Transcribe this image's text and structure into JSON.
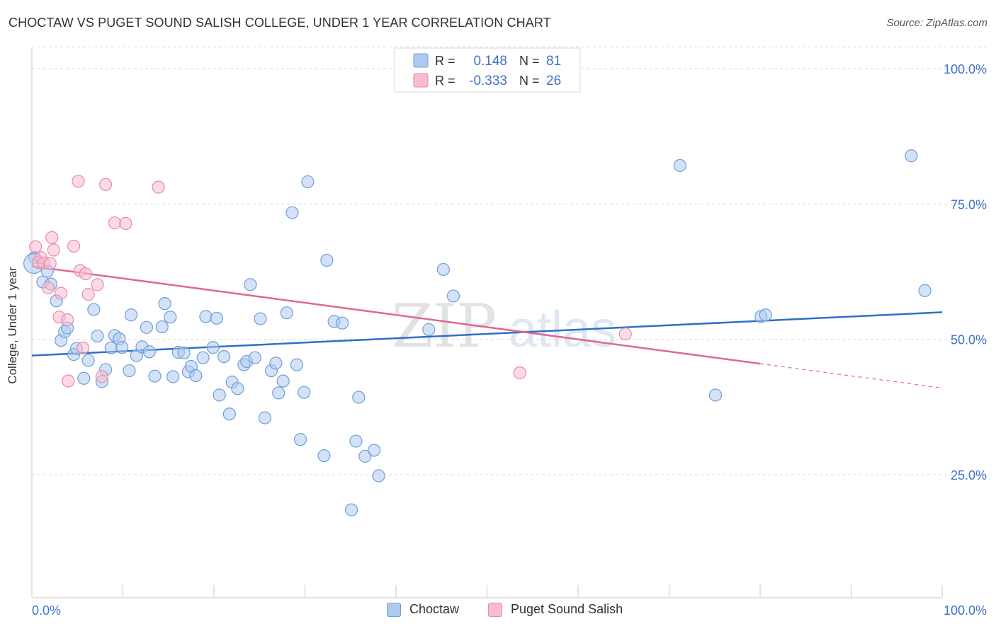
{
  "header": {
    "title": "CHOCTAW VS PUGET SOUND SALISH COLLEGE, UNDER 1 YEAR CORRELATION CHART",
    "source": "Source: ZipAtlas.com"
  },
  "watermark": {
    "part1": "ZIP",
    "part2": "atlas"
  },
  "legend_top": [
    {
      "r_label": "R =",
      "r_value": "0.148",
      "n_label": "N =",
      "n_value": "81"
    },
    {
      "r_label": "R =",
      "r_value": "-0.333",
      "n_label": "N =",
      "n_value": "26"
    }
  ],
  "legend_bottom": [
    "Choctaw",
    "Puget Sound Salish"
  ],
  "colors": {
    "blue_fill": "#aecbef",
    "blue_stroke": "#6f9fd8",
    "blue_line": "#2f6fc8",
    "pink_fill": "#f7bcd0",
    "pink_stroke": "#e88aaa",
    "pink_line": "#e06790",
    "tick_label": "#3f72c9"
  },
  "chart_data": {
    "type": "scatter",
    "title": "CHOCTAW VS PUGET SOUND SALISH COLLEGE, UNDER 1 YEAR CORRELATION CHART",
    "xlabel": "",
    "ylabel": "College, Under 1 year",
    "xlim": [
      0,
      100
    ],
    "ylim": [
      0,
      104
    ],
    "x_tick_labels": [
      "0.0%",
      "100.0%"
    ],
    "y_tick_values": [
      25,
      50,
      75,
      100
    ],
    "y_tick_labels": [
      "25.0%",
      "50.0%",
      "75.0%",
      "100.0%"
    ],
    "grid": "horizontal dashed",
    "legend_placement": "top-center and bottom",
    "series": [
      {
        "name": "Choctaw",
        "R": 0.148,
        "N": 81,
        "trend": {
          "x": [
            0,
            100
          ],
          "y": [
            47.0,
            55.0
          ]
        },
        "points": [
          [
            0.3,
            65.1
          ],
          [
            1.2,
            60.6
          ],
          [
            1.7,
            62.6
          ],
          [
            2.1,
            60.2
          ],
          [
            2.7,
            57.1
          ],
          [
            3.2,
            49.8
          ],
          [
            3.6,
            51.4
          ],
          [
            3.9,
            52.1
          ],
          [
            4.6,
            47.2
          ],
          [
            4.9,
            48.3
          ],
          [
            5.7,
            42.8
          ],
          [
            6.2,
            46.1
          ],
          [
            6.8,
            55.5
          ],
          [
            7.2,
            50.6
          ],
          [
            7.7,
            42.2
          ],
          [
            8.1,
            44.4
          ],
          [
            8.7,
            48.4
          ],
          [
            9.1,
            50.7
          ],
          [
            9.6,
            50.1
          ],
          [
            9.9,
            48.5
          ],
          [
            10.7,
            44.2
          ],
          [
            10.9,
            54.5
          ],
          [
            11.5,
            47.0
          ],
          [
            12.1,
            48.6
          ],
          [
            12.6,
            52.2
          ],
          [
            12.9,
            47.7
          ],
          [
            13.5,
            43.2
          ],
          [
            14.3,
            52.3
          ],
          [
            14.6,
            56.6
          ],
          [
            15.2,
            54.1
          ],
          [
            15.5,
            43.1
          ],
          [
            16.1,
            47.6
          ],
          [
            16.7,
            47.5
          ],
          [
            17.2,
            44.0
          ],
          [
            17.5,
            45.0
          ],
          [
            18.0,
            43.3
          ],
          [
            18.8,
            46.6
          ],
          [
            19.1,
            54.2
          ],
          [
            19.9,
            48.5
          ],
          [
            20.3,
            53.9
          ],
          [
            20.6,
            39.7
          ],
          [
            21.1,
            46.8
          ],
          [
            21.7,
            36.2
          ],
          [
            22.0,
            42.1
          ],
          [
            22.6,
            40.9
          ],
          [
            23.3,
            45.3
          ],
          [
            23.6,
            45.9
          ],
          [
            24.0,
            60.1
          ],
          [
            24.5,
            46.6
          ],
          [
            25.1,
            53.8
          ],
          [
            25.6,
            35.5
          ],
          [
            26.3,
            44.2
          ],
          [
            26.8,
            45.6
          ],
          [
            27.1,
            40.1
          ],
          [
            27.6,
            42.3
          ],
          [
            28.0,
            54.9
          ],
          [
            28.6,
            73.4
          ],
          [
            29.1,
            45.3
          ],
          [
            29.5,
            31.5
          ],
          [
            29.9,
            40.2
          ],
          [
            30.3,
            79.1
          ],
          [
            32.1,
            28.5
          ],
          [
            32.4,
            64.6
          ],
          [
            33.2,
            53.3
          ],
          [
            34.1,
            53.0
          ],
          [
            35.1,
            18.5
          ],
          [
            35.6,
            31.2
          ],
          [
            35.9,
            39.3
          ],
          [
            36.6,
            28.4
          ],
          [
            37.6,
            29.5
          ],
          [
            38.1,
            24.8
          ],
          [
            43.6,
            51.8
          ],
          [
            45.2,
            62.9
          ],
          [
            46.3,
            58.0
          ],
          [
            71.2,
            82.1
          ],
          [
            75.1,
            39.7
          ],
          [
            80.1,
            54.2
          ],
          [
            80.6,
            54.5
          ],
          [
            96.6,
            83.9
          ],
          [
            98.1,
            59.0
          ],
          [
            0.2,
            64.0
          ]
        ]
      },
      {
        "name": "Puget Sound Salish",
        "R": -0.333,
        "N": 26,
        "trend": {
          "x": [
            0,
            80
          ],
          "y": [
            63.5,
            45.5
          ]
        },
        "trend_extended": {
          "x": [
            80,
            100
          ],
          "y": [
            45.5,
            41.0
          ]
        },
        "points": [
          [
            0.4,
            67.1
          ],
          [
            0.7,
            64.2
          ],
          [
            1.0,
            65.1
          ],
          [
            1.3,
            64.1
          ],
          [
            1.8,
            59.5
          ],
          [
            2.0,
            64.0
          ],
          [
            2.2,
            68.8
          ],
          [
            2.4,
            66.5
          ],
          [
            3.0,
            54.1
          ],
          [
            3.2,
            58.5
          ],
          [
            3.9,
            53.6
          ],
          [
            4.0,
            42.3
          ],
          [
            4.6,
            67.2
          ],
          [
            5.3,
            62.7
          ],
          [
            5.6,
            48.4
          ],
          [
            5.9,
            62.1
          ],
          [
            6.2,
            58.3
          ],
          [
            7.2,
            60.1
          ],
          [
            7.7,
            43.1
          ],
          [
            5.1,
            79.2
          ],
          [
            8.1,
            78.6
          ],
          [
            9.1,
            71.5
          ],
          [
            10.3,
            71.4
          ],
          [
            13.9,
            78.1
          ],
          [
            53.6,
            43.8
          ],
          [
            65.2,
            51.0
          ]
        ]
      }
    ]
  }
}
